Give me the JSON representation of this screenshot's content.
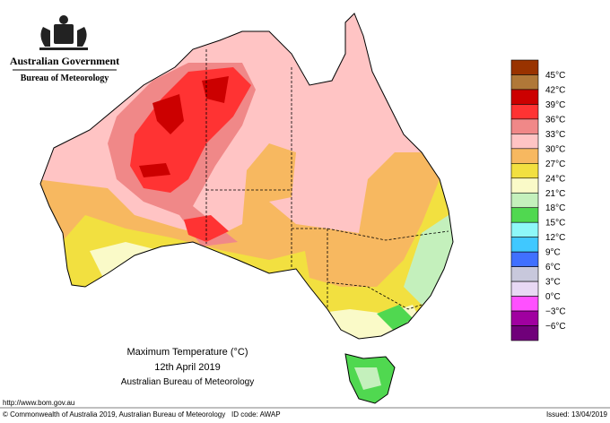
{
  "header": {
    "government": "Australian Government",
    "agency": "Bureau of Meteorology"
  },
  "title": {
    "line1": "Maximum Temperature (°C)",
    "line2": "12th April 2019",
    "line3": "Australian Bureau of Meteorology"
  },
  "legend": {
    "colors": [
      "#993300",
      "#b07838",
      "#cc0000",
      "#ff3333",
      "#f08888",
      "#ffc4c4",
      "#f7b860",
      "#f2e040",
      "#fafac8",
      "#c4f0bc",
      "#50d850",
      "#8ef8f8",
      "#40c8ff",
      "#4070ff",
      "#c8c8dc",
      "#e8d8f4",
      "#ff50ff",
      "#a000a0",
      "#70007a"
    ],
    "labels": [
      "45°C",
      "42°C",
      "39°C",
      "36°C",
      "33°C",
      "30°C",
      "27°C",
      "24°C",
      "21°C",
      "18°C",
      "15°C",
      "12°C",
      "9°C",
      "6°C",
      "3°C",
      "0°C",
      "−3°C",
      "−6°C"
    ]
  },
  "footer": {
    "url": "http://www.bom.gov.au",
    "copyright": "© Commonwealth of Australia 2019, Australian Bureau of Meteorology",
    "id_code": "ID code: AWAP",
    "issued": "Issued: 13/04/2019"
  }
}
